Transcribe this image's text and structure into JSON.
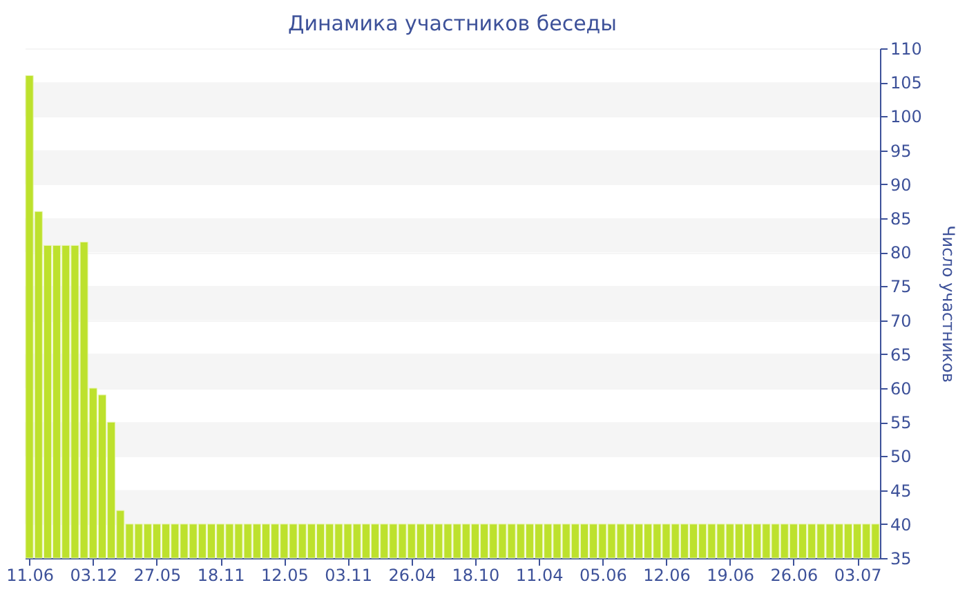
{
  "chart_data": {
    "type": "bar",
    "title": "Динамика участников беседы",
    "ylabel": "Число участников",
    "categories": [
      "11.06",
      null,
      null,
      null,
      null,
      null,
      null,
      "03.12",
      null,
      null,
      null,
      null,
      null,
      null,
      "27.05",
      null,
      null,
      null,
      null,
      null,
      null,
      "18.11",
      null,
      null,
      null,
      null,
      null,
      null,
      "12.05",
      null,
      null,
      null,
      null,
      null,
      null,
      "03.11",
      null,
      null,
      null,
      null,
      null,
      null,
      "26.04",
      null,
      null,
      null,
      null,
      null,
      null,
      "18.10",
      null,
      null,
      null,
      null,
      null,
      null,
      "11.04",
      null,
      null,
      null,
      null,
      null,
      null,
      "05.06",
      null,
      null,
      null,
      null,
      null,
      null,
      "12.06",
      null,
      null,
      null,
      null,
      null,
      null,
      "19.06",
      null,
      null,
      null,
      null,
      null,
      null,
      "26.06",
      null,
      null,
      null,
      null,
      null,
      null,
      "03.07",
      null,
      null
    ],
    "series": [
      {
        "color": "#bde12d",
        "values": [
          106,
          86,
          81,
          81,
          81,
          81,
          81.5,
          60,
          59,
          55,
          42,
          40,
          40,
          40,
          40,
          40,
          40,
          40,
          40,
          40,
          40,
          40,
          40,
          40,
          40,
          40,
          40,
          40,
          40,
          40,
          40,
          40,
          40,
          40,
          40,
          40,
          40,
          40,
          40,
          40,
          40,
          40,
          40,
          40,
          40,
          40,
          40,
          40,
          40,
          40,
          40,
          40,
          40,
          40,
          40,
          40,
          40,
          40,
          40,
          40,
          40,
          40,
          40,
          40,
          40,
          40,
          40,
          40,
          40,
          40,
          40,
          40,
          40,
          40,
          40,
          40,
          40,
          40,
          40,
          40,
          40,
          40,
          40,
          40,
          40,
          40,
          40,
          40,
          40,
          40,
          40,
          40,
          40,
          40
        ]
      }
    ],
    "ylim": [
      35,
      110
    ],
    "yticks": [
      35,
      40,
      45,
      50,
      55,
      60,
      65,
      70,
      75,
      80,
      85,
      90,
      95,
      100,
      105,
      110
    ],
    "grid": "y"
  }
}
